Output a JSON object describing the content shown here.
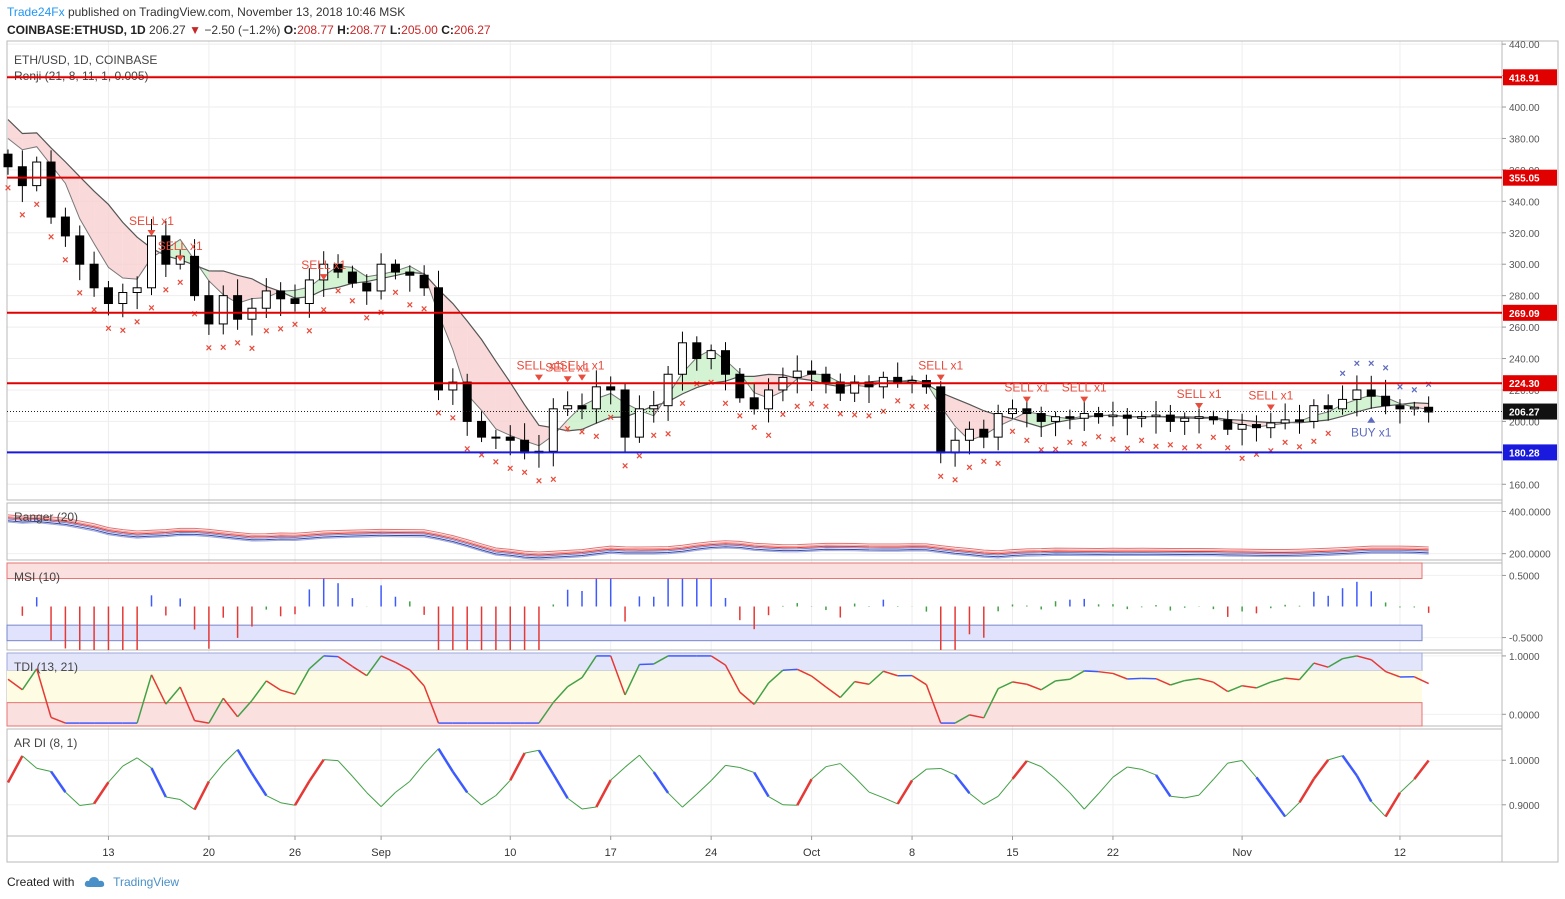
{
  "header": {
    "brand": "Trade24Fx",
    "published_text": "published on TradingView.com, November 13, 2018 10:46 MSK"
  },
  "quote": {
    "symbol": "COINBASE:ETHUSD, 1D",
    "last": "206.27",
    "change": "−2.50 (−1.2%)",
    "o_label": "O:",
    "o": "208.77",
    "h_label": "H:",
    "h": "208.77",
    "l_label": "L:",
    "l": "205.00",
    "c_label": "C:",
    "c": "206.27"
  },
  "footer": {
    "created_with": "Created with",
    "tradingview": "TradingView"
  },
  "colors": {
    "up_candle": "#ffffff",
    "down_candle": "#000000",
    "hline_red": "#e00000",
    "hline_blue": "#1a1adf",
    "sell_marker": "#e74c3c",
    "buy_marker": "#5c6bc0",
    "cloud_bear": "#f8d0d0",
    "cloud_bull": "#c8f0c8"
  },
  "chart_data": [
    {
      "type": "candlestick",
      "title": "ETH/USD, 1D, COINBASE",
      "indicator_label": "Renji (21, 8, 11, 1, 0.005)",
      "ylim": [
        150,
        442
      ],
      "y_ticks": [
        "160.00",
        "180.00",
        "200.00",
        "220.00",
        "240.00",
        "260.00",
        "280.00",
        "300.00",
        "320.00",
        "340.00",
        "360.00",
        "380.00",
        "400.00",
        "420.00",
        "440.00"
      ],
      "x_ticks": [
        {
          "label": "13",
          "day": 7
        },
        {
          "label": "20",
          "day": 14
        },
        {
          "label": "26",
          "day": 20
        },
        {
          "label": "Sep",
          "day": 26
        },
        {
          "label": "10",
          "day": 35
        },
        {
          "label": "17",
          "day": 42
        },
        {
          "label": "24",
          "day": 49
        },
        {
          "label": "Oct",
          "day": 56
        },
        {
          "label": "8",
          "day": 63
        },
        {
          "label": "15",
          "day": 70
        },
        {
          "label": "22",
          "day": 77
        },
        {
          "label": "Nov",
          "day": 86
        },
        {
          "label": "12",
          "day": 97
        }
      ],
      "current_price": "206.27",
      "price_lines": [
        {
          "value": 418.91,
          "label": "418.91",
          "color": "red"
        },
        {
          "value": 355.05,
          "label": "355.05",
          "color": "red"
        },
        {
          "value": 269.09,
          "label": "269.09",
          "color": "red"
        },
        {
          "value": 224.3,
          "label": "224.30",
          "color": "red"
        },
        {
          "value": 180.28,
          "label": "180.28",
          "color": "blue"
        }
      ],
      "closes": [
        362,
        350,
        365,
        330,
        318,
        300,
        285,
        275,
        282,
        285,
        318,
        300,
        305,
        280,
        262,
        280,
        265,
        272,
        283,
        278,
        275,
        290,
        300,
        295,
        288,
        283,
        300,
        295,
        293,
        285,
        220,
        225,
        200,
        190,
        190,
        188,
        180,
        181,
        208,
        210,
        208,
        222,
        220,
        190,
        208,
        210,
        230,
        250,
        240,
        245,
        230,
        215,
        208,
        220,
        228,
        232,
        230,
        225,
        218,
        225,
        222,
        228,
        225,
        226,
        222,
        180,
        188,
        195,
        190,
        205,
        208,
        205,
        200,
        203,
        202,
        205,
        203,
        204,
        202,
        203,
        204,
        200,
        202,
        203,
        201,
        195,
        198,
        196,
        199,
        201,
        200,
        210,
        208,
        214,
        220,
        216,
        210,
        208,
        209,
        206
      ],
      "ohlc_generated_from_closes": true,
      "signals": [
        {
          "day": 10,
          "label": "SELL x1",
          "type": "sell",
          "price": 316
        },
        {
          "day": 12,
          "label": "SELL x1",
          "type": "sell",
          "price": 300
        },
        {
          "day": 22,
          "label": "SELL x1",
          "type": "sell",
          "price": 288
        },
        {
          "day": 37,
          "label": "SELL x1",
          "type": "sell",
          "price": 224
        },
        {
          "day": 39,
          "label": "SELL x1",
          "type": "sell",
          "price": 223
        },
        {
          "day": 40,
          "label": "SELL x1",
          "type": "sell",
          "price": 224
        },
        {
          "day": 65,
          "label": "SELL x1",
          "type": "sell",
          "price": 224
        },
        {
          "day": 71,
          "label": "SELL x1",
          "type": "sell",
          "price": 210
        },
        {
          "day": 75,
          "label": "SELL x1",
          "type": "sell",
          "price": 210
        },
        {
          "day": 83,
          "label": "SELL x1",
          "type": "sell",
          "price": 206
        },
        {
          "day": 88,
          "label": "SELL x1",
          "type": "sell",
          "price": 205
        },
        {
          "day": 95,
          "label": "BUY x1",
          "type": "buy",
          "price": 203
        }
      ]
    },
    {
      "type": "line",
      "title": "Ranger (20)",
      "ylim": [
        170,
        440
      ],
      "y_ticks": [
        "200.0000",
        "400.0000"
      ]
    },
    {
      "type": "bar",
      "title": "MSI (10)",
      "ylim": [
        -0.7,
        0.7
      ],
      "y_ticks": [
        "-0.5000",
        "0.5000"
      ]
    },
    {
      "type": "line",
      "title": "TDI (13, 21)",
      "ylim": [
        -0.2,
        1.05
      ],
      "y_ticks": [
        "0.0000",
        "1.0000"
      ]
    },
    {
      "type": "line",
      "title": "AR DI (8, 1)",
      "ylim": [
        0.83,
        1.07
      ],
      "y_ticks": [
        "0.9000",
        "1.0000"
      ]
    }
  ]
}
